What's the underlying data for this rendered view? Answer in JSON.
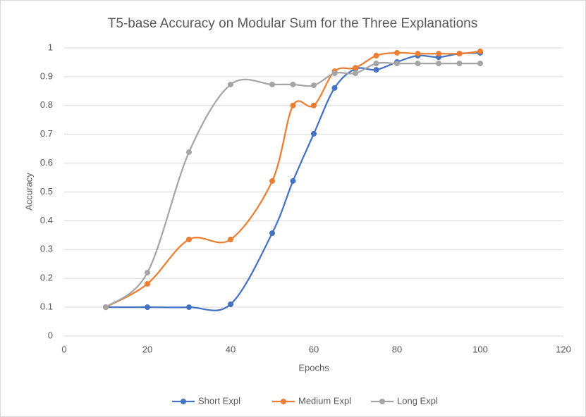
{
  "chart_data": {
    "type": "line",
    "title": "T5-base Accuracy on Modular Sum for the Three Explanations",
    "x_label": "Epochs",
    "y_label": "Accuracy",
    "x": [
      10,
      20,
      30,
      40,
      50,
      55,
      60,
      65,
      70,
      75,
      80,
      85,
      90,
      95,
      100
    ],
    "series": [
      {
        "name": "Short Expl",
        "color": "#4472c4",
        "values": [
          0.1,
          0.1,
          0.1,
          0.11,
          0.357,
          0.538,
          0.702,
          0.861,
          0.927,
          0.924,
          0.951,
          0.973,
          0.968,
          0.98,
          0.983
        ]
      },
      {
        "name": "Medium Expl",
        "color": "#ed7d31",
        "values": [
          0.1,
          0.181,
          0.335,
          0.335,
          0.538,
          0.8,
          0.8,
          0.919,
          0.931,
          0.973,
          0.983,
          0.98,
          0.98,
          0.98,
          0.988
        ]
      },
      {
        "name": "Long Expl",
        "color": "#a5a5a5",
        "values": [
          0.1,
          0.22,
          0.638,
          0.873,
          0.873,
          0.873,
          0.87,
          0.912,
          0.912,
          0.946,
          0.946,
          0.946,
          0.946,
          0.946,
          0.946
        ]
      }
    ],
    "xlim": [
      0,
      120
    ],
    "xticks": [
      0,
      20,
      40,
      60,
      80,
      100,
      120
    ],
    "ylim": [
      0,
      1
    ],
    "yticks": [
      0,
      0.1,
      0.2,
      0.3,
      0.4,
      0.5,
      0.6,
      0.7,
      0.8,
      0.9,
      1
    ],
    "grid": true,
    "smooth": true,
    "legend": "bottom"
  }
}
